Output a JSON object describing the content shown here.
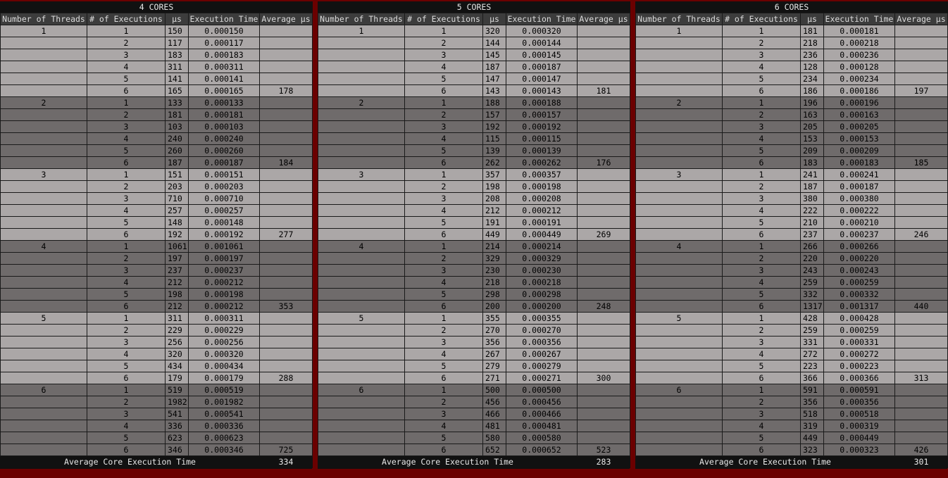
{
  "headers": [
    "Number of Threads",
    "# of Executions",
    "μs",
    "Execution Time",
    "Average μs"
  ],
  "footer_label": "Average Core Execution Time",
  "panels": [
    {
      "title": "4 CORES",
      "overall_avg": "334",
      "groups": [
        {
          "threads": "1",
          "rows": [
            [
              "1",
              "150",
              "0.000150"
            ],
            [
              "2",
              "117",
              "0.000117"
            ],
            [
              "3",
              "183",
              "0.000183"
            ],
            [
              "4",
              "311",
              "0.000311"
            ],
            [
              "5",
              "141",
              "0.000141"
            ],
            [
              "6",
              "165",
              "0.000165"
            ]
          ],
          "avg": "178"
        },
        {
          "threads": "2",
          "rows": [
            [
              "1",
              "133",
              "0.000133"
            ],
            [
              "2",
              "181",
              "0.000181"
            ],
            [
              "3",
              "103",
              "0.000103"
            ],
            [
              "4",
              "240",
              "0.000240"
            ],
            [
              "5",
              "260",
              "0.000260"
            ],
            [
              "6",
              "187",
              "0.000187"
            ]
          ],
          "avg": "184"
        },
        {
          "threads": "3",
          "rows": [
            [
              "1",
              "151",
              "0.000151"
            ],
            [
              "2",
              "203",
              "0.000203"
            ],
            [
              "3",
              "710",
              "0.000710"
            ],
            [
              "4",
              "257",
              "0.000257"
            ],
            [
              "5",
              "148",
              "0.000148"
            ],
            [
              "6",
              "192",
              "0.000192"
            ]
          ],
          "avg": "277"
        },
        {
          "threads": "4",
          "rows": [
            [
              "1",
              "1061",
              "0.001061"
            ],
            [
              "2",
              "197",
              "0.000197"
            ],
            [
              "3",
              "237",
              "0.000237"
            ],
            [
              "4",
              "212",
              "0.000212"
            ],
            [
              "5",
              "198",
              "0.000198"
            ],
            [
              "6",
              "212",
              "0.000212"
            ]
          ],
          "avg": "353"
        },
        {
          "threads": "5",
          "rows": [
            [
              "1",
              "311",
              "0.000311"
            ],
            [
              "2",
              "229",
              "0.000229"
            ],
            [
              "3",
              "256",
              "0.000256"
            ],
            [
              "4",
              "320",
              "0.000320"
            ],
            [
              "5",
              "434",
              "0.000434"
            ],
            [
              "6",
              "179",
              "0.000179"
            ]
          ],
          "avg": "288"
        },
        {
          "threads": "6",
          "rows": [
            [
              "1",
              "519",
              "0.000519"
            ],
            [
              "2",
              "1982",
              "0.001982"
            ],
            [
              "3",
              "541",
              "0.000541"
            ],
            [
              "4",
              "336",
              "0.000336"
            ],
            [
              "5",
              "623",
              "0.000623"
            ],
            [
              "6",
              "346",
              "0.000346"
            ]
          ],
          "avg": "725"
        }
      ]
    },
    {
      "title": "5 CORES",
      "overall_avg": "283",
      "groups": [
        {
          "threads": "1",
          "rows": [
            [
              "1",
              "320",
              "0.000320"
            ],
            [
              "2",
              "144",
              "0.000144"
            ],
            [
              "3",
              "145",
              "0.000145"
            ],
            [
              "4",
              "187",
              "0.000187"
            ],
            [
              "5",
              "147",
              "0.000147"
            ],
            [
              "6",
              "143",
              "0.000143"
            ]
          ],
          "avg": "181"
        },
        {
          "threads": "2",
          "rows": [
            [
              "1",
              "188",
              "0.000188"
            ],
            [
              "2",
              "157",
              "0.000157"
            ],
            [
              "3",
              "192",
              "0.000192"
            ],
            [
              "4",
              "115",
              "0.000115"
            ],
            [
              "5",
              "139",
              "0.000139"
            ],
            [
              "6",
              "262",
              "0.000262"
            ]
          ],
          "avg": "176"
        },
        {
          "threads": "3",
          "rows": [
            [
              "1",
              "357",
              "0.000357"
            ],
            [
              "2",
              "198",
              "0.000198"
            ],
            [
              "3",
              "208",
              "0.000208"
            ],
            [
              "4",
              "212",
              "0.000212"
            ],
            [
              "5",
              "191",
              "0.000191"
            ],
            [
              "6",
              "449",
              "0.000449"
            ]
          ],
          "avg": "269"
        },
        {
          "threads": "4",
          "rows": [
            [
              "1",
              "214",
              "0.000214"
            ],
            [
              "2",
              "329",
              "0.000329"
            ],
            [
              "3",
              "230",
              "0.000230"
            ],
            [
              "4",
              "218",
              "0.000218"
            ],
            [
              "5",
              "298",
              "0.000298"
            ],
            [
              "6",
              "200",
              "0.000200"
            ]
          ],
          "avg": "248"
        },
        {
          "threads": "5",
          "rows": [
            [
              "1",
              "355",
              "0.000355"
            ],
            [
              "2",
              "270",
              "0.000270"
            ],
            [
              "3",
              "356",
              "0.000356"
            ],
            [
              "4",
              "267",
              "0.000267"
            ],
            [
              "5",
              "279",
              "0.000279"
            ],
            [
              "6",
              "271",
              "0.000271"
            ]
          ],
          "avg": "300"
        },
        {
          "threads": "6",
          "rows": [
            [
              "1",
              "500",
              "0.000500"
            ],
            [
              "2",
              "456",
              "0.000456"
            ],
            [
              "3",
              "466",
              "0.000466"
            ],
            [
              "4",
              "481",
              "0.000481"
            ],
            [
              "5",
              "580",
              "0.000580"
            ],
            [
              "6",
              "652",
              "0.000652"
            ]
          ],
          "avg": "523"
        }
      ]
    },
    {
      "title": "6 CORES",
      "overall_avg": "301",
      "groups": [
        {
          "threads": "1",
          "rows": [
            [
              "1",
              "181",
              "0.000181"
            ],
            [
              "2",
              "218",
              "0.000218"
            ],
            [
              "3",
              "236",
              "0.000236"
            ],
            [
              "4",
              "128",
              "0.000128"
            ],
            [
              "5",
              "234",
              "0.000234"
            ],
            [
              "6",
              "186",
              "0.000186"
            ]
          ],
          "avg": "197"
        },
        {
          "threads": "2",
          "rows": [
            [
              "1",
              "196",
              "0.000196"
            ],
            [
              "2",
              "163",
              "0.000163"
            ],
            [
              "3",
              "205",
              "0.000205"
            ],
            [
              "4",
              "153",
              "0.000153"
            ],
            [
              "5",
              "209",
              "0.000209"
            ],
            [
              "6",
              "183",
              "0.000183"
            ]
          ],
          "avg": "185"
        },
        {
          "threads": "3",
          "rows": [
            [
              "1",
              "241",
              "0.000241"
            ],
            [
              "2",
              "187",
              "0.000187"
            ],
            [
              "3",
              "380",
              "0.000380"
            ],
            [
              "4",
              "222",
              "0.000222"
            ],
            [
              "5",
              "210",
              "0.000210"
            ],
            [
              "6",
              "237",
              "0.000237"
            ]
          ],
          "avg": "246"
        },
        {
          "threads": "4",
          "rows": [
            [
              "1",
              "266",
              "0.000266"
            ],
            [
              "2",
              "220",
              "0.000220"
            ],
            [
              "3",
              "243",
              "0.000243"
            ],
            [
              "4",
              "259",
              "0.000259"
            ],
            [
              "5",
              "332",
              "0.000332"
            ],
            [
              "6",
              "1317",
              "0.001317"
            ]
          ],
          "avg": "440"
        },
        {
          "threads": "5",
          "rows": [
            [
              "1",
              "428",
              "0.000428"
            ],
            [
              "2",
              "259",
              "0.000259"
            ],
            [
              "3",
              "331",
              "0.000331"
            ],
            [
              "4",
              "272",
              "0.000272"
            ],
            [
              "5",
              "223",
              "0.000223"
            ],
            [
              "6",
              "366",
              "0.000366"
            ]
          ],
          "avg": "313"
        },
        {
          "threads": "6",
          "rows": [
            [
              "1",
              "591",
              "0.000591"
            ],
            [
              "2",
              "356",
              "0.000356"
            ],
            [
              "3",
              "518",
              "0.000518"
            ],
            [
              "4",
              "319",
              "0.000319"
            ],
            [
              "5",
              "449",
              "0.000449"
            ],
            [
              "6",
              "323",
              "0.000323"
            ]
          ],
          "avg": "426"
        }
      ]
    }
  ]
}
